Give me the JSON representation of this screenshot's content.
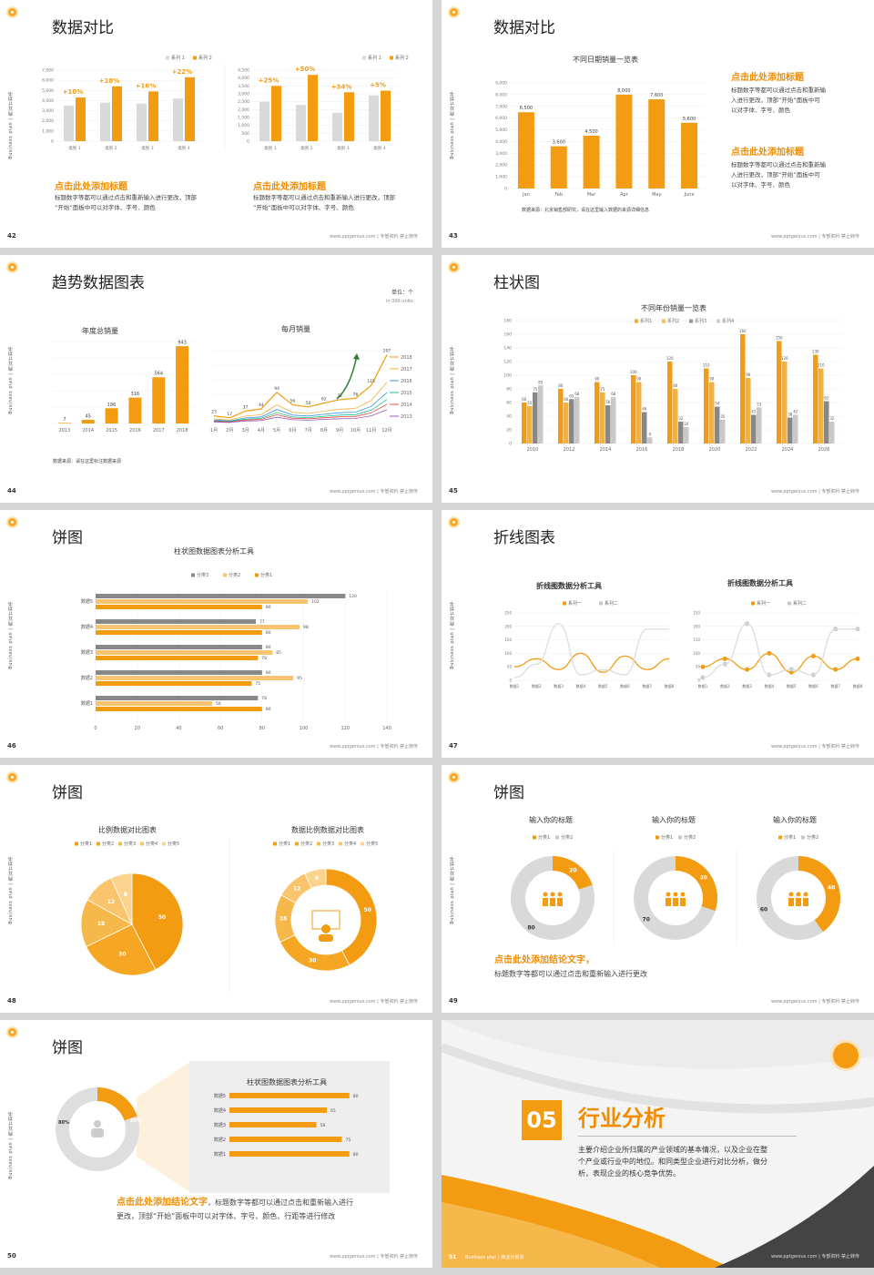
{
  "common": {
    "vertical_text": "Business plan | 商业计划书",
    "footer": "www.pptgenius.com | 专部资料·禁止转传"
  },
  "s42": {
    "page": "42",
    "title": "数据对比",
    "legend": [
      "系列 1",
      "系列 2"
    ],
    "chart1": {
      "categories": [
        "类别 1",
        "类别 2",
        "类别 3",
        "类别 4"
      ],
      "yticks": [
        "7,000",
        "6,000",
        "5,000",
        "4,000",
        "3,000",
        "2,000",
        "1,000",
        "0"
      ],
      "s1": [
        3500,
        3800,
        3700,
        4200
      ],
      "s2": [
        4300,
        5400,
        4900,
        6300
      ],
      "pct": [
        "+10%",
        "+18%",
        "+16%",
        "+22%"
      ]
    },
    "chart2": {
      "categories": [
        "类别 1",
        "类别 2",
        "类别 3",
        "类别 4"
      ],
      "yticks": [
        "4,500",
        "4,000",
        "3,500",
        "3,000",
        "2,500",
        "2,000",
        "1,500",
        "1,000",
        "500",
        "0"
      ],
      "s1": [
        2500,
        2300,
        1800,
        2900
      ],
      "s2": [
        3500,
        4200,
        3100,
        3200
      ],
      "pct": [
        "+25%",
        "+50%",
        "+34%",
        "+5%"
      ]
    },
    "h1": "点击此处添加标题",
    "t1": "标题数字等都可以通过点击和重新输入进行更改，顶部\n“开始”面板中可以对字体、字号、颜色",
    "h2": "点击此处添加标题",
    "t2": "标题数字等都可以通过点击和重新输入进行更改，顶部\n“开始”面板中可以对字体、字号、颜色"
  },
  "s43": {
    "page": "43",
    "title": "数据对比",
    "chart_title": "不同日期销量一览表",
    "categories": [
      "Jan",
      "Feb",
      "Mar",
      "Apr",
      "May",
      "June"
    ],
    "values": [
      6500,
      3600,
      4500,
      8000,
      7600,
      5600
    ],
    "labels": [
      "6,500",
      "3,600",
      "4,500",
      "8,000",
      "7,600",
      "5,600"
    ],
    "yticks": [
      "9,000",
      "8,000",
      "7,000",
      "6,000",
      "5,000",
      "4,000",
      "3,000",
      "2,000",
      "1,000",
      "0"
    ],
    "source": "数据来源：北京销售部研究，请在这里输入数据的来源详细信息",
    "h1": "点击此处添加标题",
    "t1": "标题数字等都可以通过点击和重新输\n入进行更改，顶部“开始”面板中可\n以对字体、字号、颜色",
    "h2": "点击此处添加标题",
    "t2": "标题数字等都可以通过点击和重新输\n入进行更改，顶部“开始”面板中可\n以对字体、字号、颜色"
  },
  "s44": {
    "page": "44",
    "title": "趋势数据图表",
    "unit": "单位：个",
    "unit2": "in 000 units",
    "c1_title": "年度总销量",
    "years": [
      "2013",
      "2014",
      "2015",
      "2016",
      "2017",
      "2018"
    ],
    "year_values": [
      7,
      45,
      186,
      316,
      564,
      943
    ],
    "c2_title": "每月销量",
    "months": [
      "1月",
      "2月",
      "3月",
      "4月",
      "5月",
      "6月",
      "7月",
      "8月",
      "9月",
      "10月",
      "11月",
      "12月"
    ],
    "month_labels": [
      "23",
      "17",
      "37",
      "44",
      "94",
      "56",
      "50",
      "62",
      "72",
      "76",
      "115",
      "207"
    ],
    "month_values": [
      23,
      17,
      37,
      44,
      94,
      56,
      50,
      62,
      72,
      76,
      115,
      207
    ],
    "line_legend": [
      "2018",
      "2017",
      "2016",
      "2015",
      "2014",
      "2013"
    ],
    "source": "数据来源：请在这里标注数据来源"
  },
  "s45": {
    "page": "45",
    "title": "柱状图",
    "chart_title": "不同年份销量一览表",
    "legend": [
      "系列1",
      "系列2",
      "系列3",
      "系列4"
    ],
    "categories": [
      "2010",
      "2012",
      "2014",
      "2016",
      "2018",
      "2020",
      "2022",
      "2024",
      "2026"
    ],
    "series": [
      [
        60,
        80,
        90,
        100,
        120,
        110,
        160,
        150,
        130
      ],
      [
        55,
        60,
        75,
        90,
        80,
        90,
        96,
        120,
        110
      ],
      [
        75,
        65,
        56,
        46,
        32,
        54,
        42,
        38,
        62
      ],
      [
        85,
        68,
        68,
        9,
        24,
        35,
        53,
        42,
        32
      ]
    ],
    "yticks": [
      "180",
      "160",
      "140",
      "120",
      "100",
      "80",
      "60",
      "40",
      "20",
      "0"
    ]
  },
  "s46": {
    "page": "46",
    "title": "饼图",
    "chart_title": "柱状图数据图表分析工具",
    "legend": [
      "分类3",
      "分类2",
      "分类1"
    ],
    "categories": [
      "数据5",
      "数据4",
      "数据3",
      "数据2",
      "数据1"
    ],
    "s3": [
      120,
      77,
      80,
      80,
      78
    ],
    "s2": [
      102,
      98,
      85,
      95,
      56
    ],
    "s1": [
      80,
      80,
      78,
      75,
      80
    ],
    "xticks": [
      "0",
      "20",
      "40",
      "60",
      "80",
      "100",
      "120",
      "140"
    ]
  },
  "s47": {
    "page": "47",
    "title": "折线图表",
    "c1_title": "折线图数据分析工具",
    "c2_title": "折线图数据分析工具",
    "legend": [
      "系列一",
      "系列二"
    ],
    "yticks": [
      "250",
      "200",
      "150",
      "100",
      "50",
      "0"
    ],
    "categories": [
      "数据1",
      "数据2",
      "数据3",
      "数据4",
      "数据5",
      "数据6",
      "数据7",
      "数据8"
    ],
    "series1": [
      50,
      80,
      40,
      100,
      30,
      90,
      40,
      80
    ],
    "series2": [
      10,
      60,
      210,
      20,
      40,
      20,
      190,
      190
    ]
  },
  "s48": {
    "page": "48",
    "title": "饼图",
    "c1_title": "比例数据对比图表",
    "c2_title": "数据比例数据对比图表",
    "legend": [
      "分类1",
      "分类2",
      "分类3",
      "分类4",
      "分类5"
    ],
    "values": [
      50,
      30,
      18,
      12,
      8
    ]
  },
  "s49": {
    "page": "49",
    "title": "饼图",
    "c1_title": "输入你的标题",
    "c2_title": "输入你的标题",
    "c3_title": "输入你的标题",
    "legend": [
      "分类1",
      "分类2"
    ],
    "d1": [
      20,
      80
    ],
    "d2": [
      30,
      70
    ],
    "d3": [
      40,
      60
    ],
    "h": "点击此处添加结论文字，",
    "t": "标题数字等都可以通过点击和重新输入进行更改"
  },
  "s50": {
    "page": "50",
    "title": "饼图",
    "donut": [
      20,
      80
    ],
    "donut_labels": [
      "20%",
      "80%"
    ],
    "chart_title": "柱状图数据图表分析工具",
    "categories": [
      "数据5",
      "数据4",
      "数据3",
      "数据2",
      "数据1"
    ],
    "values": [
      80,
      65,
      58,
      75,
      80
    ],
    "h": "点击此处添加结论文字",
    "t1": "，标题数字等都可以通过点击和重新输入进行",
    "t2": "更改，顶部“开始”面板中可以对字体、字号、颜色、行距等进行修改"
  },
  "s51": {
    "page": "51",
    "bp": "Business plan | 商业计划书",
    "num": "05",
    "title": "行业分析",
    "desc": "主要介绍企业所归属的产业领域的基本情况，以及企业在整\n个产业或行业中的地位。和同类型企业进行对比分析，做分\n析，表现企业的核心竞争优势。"
  },
  "colors": {
    "orange": "#f39c12",
    "gray": "#c8c8c8",
    "dark_gray": "#888888",
    "light_orange": "#f8c471"
  }
}
